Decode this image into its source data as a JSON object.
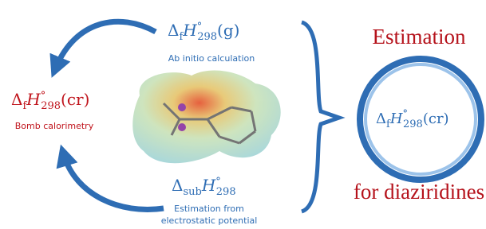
{
  "gas": {
    "formula": {
      "delta": "Δ",
      "op": "f",
      "symbol": "H",
      "degree": "°",
      "temp": "298",
      "state": "(g)"
    },
    "method": "Ab initio calculation"
  },
  "crystal": {
    "formula": {
      "delta": "Δ",
      "op": "f",
      "symbol": "H",
      "degree": "°",
      "temp": "298",
      "state": "(cr)"
    },
    "method": "Bomb calorimetry"
  },
  "sublimation": {
    "formula": {
      "delta": "Δ",
      "op": "sub",
      "symbol": "H",
      "degree": "°",
      "temp": "298"
    },
    "method": [
      "Estimation from",
      "electrostatic potential"
    ]
  },
  "result": {
    "title": "Estimation",
    "formula": {
      "delta": "Δ",
      "op": "f",
      "symbol": "H",
      "degree": "°",
      "temp": "298",
      "state": "(cr)"
    },
    "subtitle": "for diaziridines"
  }
}
